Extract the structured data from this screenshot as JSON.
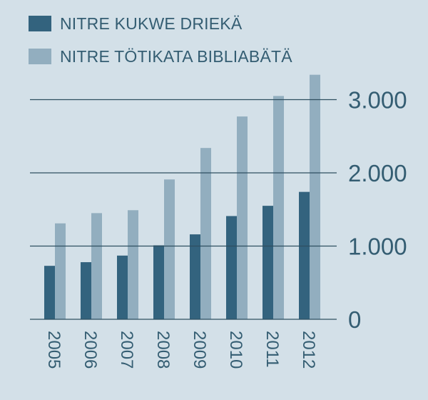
{
  "colors": {
    "background": "#d3e0e8",
    "series_dark": "#33637e",
    "series_light": "#92aebf",
    "text": "#345d72",
    "gridline": "#2e4f60"
  },
  "legend": [
    {
      "label": "NITRE KUKWE DRIEKÄ"
    },
    {
      "label": "NITRE TÖTIKATA BIBLIABÄTÄ"
    }
  ],
  "chart_data": {
    "type": "bar",
    "categories": [
      "2005",
      "2006",
      "2007",
      "2008",
      "2009",
      "2010",
      "2011",
      "2012"
    ],
    "series": [
      {
        "name": "NITRE KUKWE DRIEKÄ",
        "values": [
          730,
          780,
          870,
          1010,
          1160,
          1410,
          1550,
          1740
        ]
      },
      {
        "name": "NITRE TÖTIKATA BIBLIABÄTÄ",
        "values": [
          1310,
          1450,
          1490,
          1910,
          2340,
          2770,
          3050,
          3340
        ]
      }
    ],
    "ylim": [
      0,
      3000
    ],
    "yticks": [
      0,
      1000,
      2000,
      3000
    ],
    "ytick_labels": [
      "0",
      "1.000",
      "2.000",
      "3.000"
    ],
    "y_axis_position": "right",
    "x_tick_rotation": "vertical",
    "grid": true,
    "legend_position": "top-left"
  }
}
